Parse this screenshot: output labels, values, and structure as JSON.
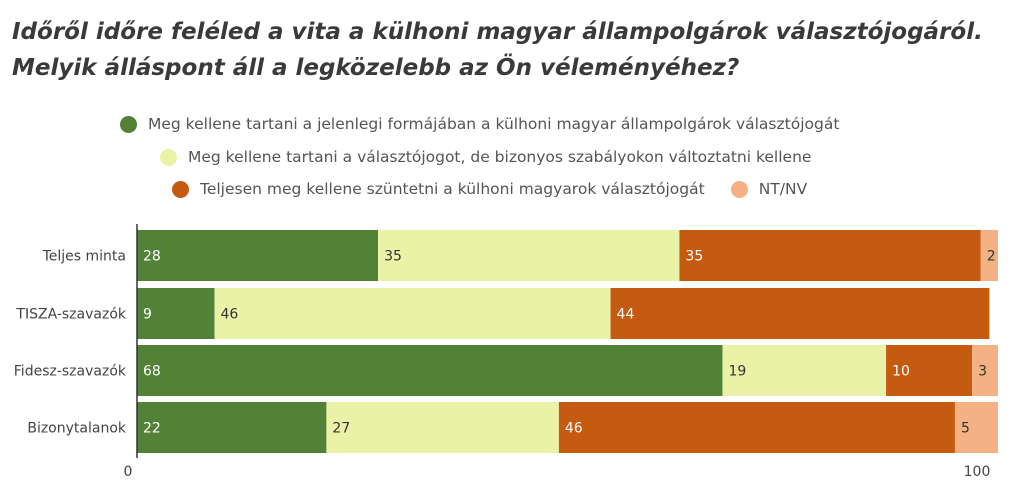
{
  "chart_data": {
    "type": "bar",
    "orientation": "horizontal",
    "stacked": true,
    "title": "Időről időre feléled a vita a külhoni magyar állampolgárok választójogáról. Melyik álláspont áll a legközelebb az Ön véleményéhez?",
    "categories": [
      "Teljes minta",
      "TISZA-szavazók",
      "Fidesz-szavazók",
      "Bizonytalanok"
    ],
    "series": [
      {
        "name": "Meg kellene tartani a jelenlegi formájában a külhoni magyar állampolgárok választójogát",
        "color": "#538135",
        "text_color": "#ffffff",
        "values": [
          28,
          9,
          68,
          22
        ]
      },
      {
        "name": "Meg kellene tartani a választójogot, de bizonyos szabályokon változtatni kellene",
        "color": "#eaf2a8",
        "text_color": "#333333",
        "values": [
          35,
          46,
          19,
          27
        ]
      },
      {
        "name": "Teljesen meg kellene szüntetni a külhoni magyarok választójogát",
        "color": "#c55a11",
        "text_color": "#ffffff",
        "values": [
          35,
          44,
          10,
          46
        ]
      },
      {
        "name": "NT/NV",
        "color": "#f4b183",
        "text_color": "#333333",
        "values": [
          2,
          0,
          3,
          5
        ]
      }
    ],
    "xlim": [
      0,
      100
    ],
    "x_ticks": [
      "0",
      "100"
    ],
    "legend_position": "top",
    "grid": false
  }
}
